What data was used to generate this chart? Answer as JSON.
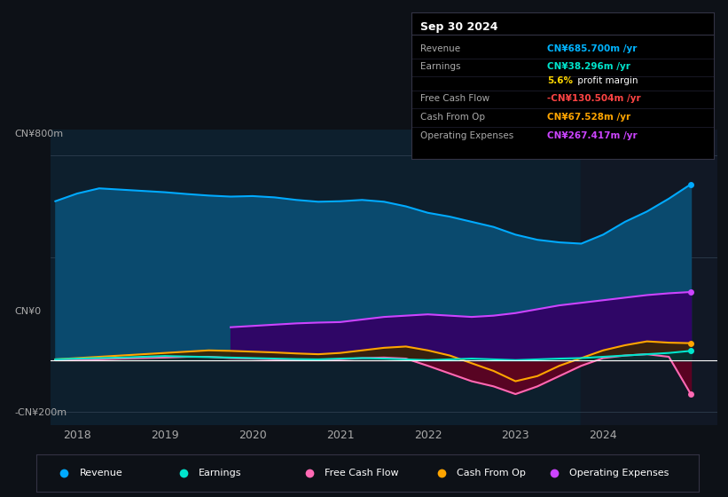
{
  "bg_color": "#0d1117",
  "plot_bg_color": "#0d1f2d",
  "ylabel": "CN¥800m",
  "ylabel2": "CN¥0",
  "ylabel3": "-CN¥200m",
  "ylim": [
    -250,
    900
  ],
  "xlim_start": 2017.7,
  "xlim_end": 2025.3,
  "highlight_start": 2023.75,
  "highlight_end": 2025.3,
  "info_box": {
    "date": "Sep 30 2024",
    "rows": [
      {
        "label": "Revenue",
        "value": "CN¥685.700m /yr",
        "color": "#00b4ff"
      },
      {
        "label": "Earnings",
        "value": "CN¥38.296m /yr",
        "color": "#00e5cc"
      },
      {
        "label": "",
        "value": "5.6% profit margin",
        "color": "#ffffff"
      },
      {
        "label": "Free Cash Flow",
        "value": "-CN¥130.504m /yr",
        "color": "#ff4444"
      },
      {
        "label": "Cash From Op",
        "value": "CN¥67.528m /yr",
        "color": "#ffa500"
      },
      {
        "label": "Operating Expenses",
        "value": "CN¥267.417m /yr",
        "color": "#cc44ff"
      }
    ]
  },
  "series": {
    "revenue": {
      "color": "#00aaff",
      "fill_color": "#0a4a6e",
      "label": "Revenue",
      "x": [
        2017.75,
        2018.0,
        2018.25,
        2018.5,
        2018.75,
        2019.0,
        2019.25,
        2019.5,
        2019.75,
        2020.0,
        2020.25,
        2020.5,
        2020.75,
        2021.0,
        2021.25,
        2021.5,
        2021.75,
        2022.0,
        2022.25,
        2022.5,
        2022.75,
        2023.0,
        2023.25,
        2023.5,
        2023.75,
        2024.0,
        2024.25,
        2024.5,
        2024.75,
        2025.0
      ],
      "y": [
        620,
        650,
        670,
        665,
        660,
        655,
        648,
        642,
        638,
        640,
        635,
        625,
        618,
        620,
        625,
        618,
        600,
        575,
        560,
        540,
        520,
        490,
        470,
        460,
        455,
        490,
        540,
        580,
        630,
        686
      ]
    },
    "earnings": {
      "color": "#00e5cc",
      "fill_color": "#003333",
      "label": "Earnings",
      "x": [
        2017.75,
        2018.0,
        2018.25,
        2018.5,
        2018.75,
        2019.0,
        2019.25,
        2019.5,
        2019.75,
        2020.0,
        2020.25,
        2020.5,
        2020.75,
        2021.0,
        2021.25,
        2021.5,
        2021.75,
        2022.0,
        2022.25,
        2022.5,
        2022.75,
        2023.0,
        2023.25,
        2023.5,
        2023.75,
        2024.0,
        2024.25,
        2024.5,
        2024.75,
        2025.0
      ],
      "y": [
        5,
        8,
        10,
        12,
        15,
        18,
        16,
        14,
        12,
        10,
        8,
        6,
        5,
        8,
        10,
        8,
        5,
        2,
        5,
        8,
        5,
        2,
        5,
        8,
        10,
        15,
        20,
        25,
        30,
        38
      ]
    },
    "free_cash_flow": {
      "color": "#ff69b4",
      "fill_color": "#660022",
      "label": "Free Cash Flow",
      "x": [
        2017.75,
        2018.0,
        2018.25,
        2018.5,
        2018.75,
        2019.0,
        2019.25,
        2019.5,
        2019.75,
        2020.0,
        2020.25,
        2020.5,
        2020.75,
        2021.0,
        2021.25,
        2021.5,
        2021.75,
        2022.0,
        2022.25,
        2022.5,
        2022.75,
        2023.0,
        2023.25,
        2023.5,
        2023.75,
        2024.0,
        2024.25,
        2024.5,
        2024.75,
        2025.0
      ],
      "y": [
        2,
        3,
        5,
        8,
        10,
        12,
        15,
        15,
        10,
        8,
        5,
        3,
        2,
        5,
        10,
        12,
        8,
        -20,
        -50,
        -80,
        -100,
        -130,
        -100,
        -60,
        -20,
        10,
        20,
        25,
        15,
        -130
      ]
    },
    "cash_from_op": {
      "color": "#ffa500",
      "fill_color": "#3a2500",
      "label": "Cash From Op",
      "x": [
        2017.75,
        2018.0,
        2018.25,
        2018.5,
        2018.75,
        2019.0,
        2019.25,
        2019.5,
        2019.75,
        2020.0,
        2020.25,
        2020.5,
        2020.75,
        2021.0,
        2021.25,
        2021.5,
        2021.75,
        2022.0,
        2022.25,
        2022.5,
        2022.75,
        2023.0,
        2023.25,
        2023.5,
        2023.75,
        2024.0,
        2024.25,
        2024.5,
        2024.75,
        2025.0
      ],
      "y": [
        5,
        10,
        15,
        20,
        25,
        30,
        35,
        40,
        38,
        35,
        32,
        28,
        25,
        30,
        40,
        50,
        55,
        40,
        20,
        -10,
        -40,
        -80,
        -60,
        -20,
        10,
        40,
        60,
        75,
        70,
        68
      ]
    },
    "operating_expenses": {
      "color": "#cc44ff",
      "fill_color": "#330066",
      "label": "Operating Expenses",
      "x": [
        2019.75,
        2020.0,
        2020.25,
        2020.5,
        2020.75,
        2021.0,
        2021.25,
        2021.5,
        2021.75,
        2022.0,
        2022.25,
        2022.5,
        2022.75,
        2023.0,
        2023.25,
        2023.5,
        2023.75,
        2024.0,
        2024.25,
        2024.5,
        2024.75,
        2025.0
      ],
      "y": [
        130,
        135,
        140,
        145,
        148,
        150,
        160,
        170,
        175,
        180,
        175,
        170,
        175,
        185,
        200,
        215,
        225,
        235,
        245,
        255,
        262,
        267
      ]
    }
  },
  "legend": [
    {
      "label": "Revenue",
      "color": "#00aaff"
    },
    {
      "label": "Earnings",
      "color": "#00e5cc"
    },
    {
      "label": "Free Cash Flow",
      "color": "#ff69b4"
    },
    {
      "label": "Cash From Op",
      "color": "#ffa500"
    },
    {
      "label": "Operating Expenses",
      "color": "#cc44ff"
    }
  ],
  "xticks": [
    2018,
    2019,
    2020,
    2021,
    2022,
    2023,
    2024
  ]
}
